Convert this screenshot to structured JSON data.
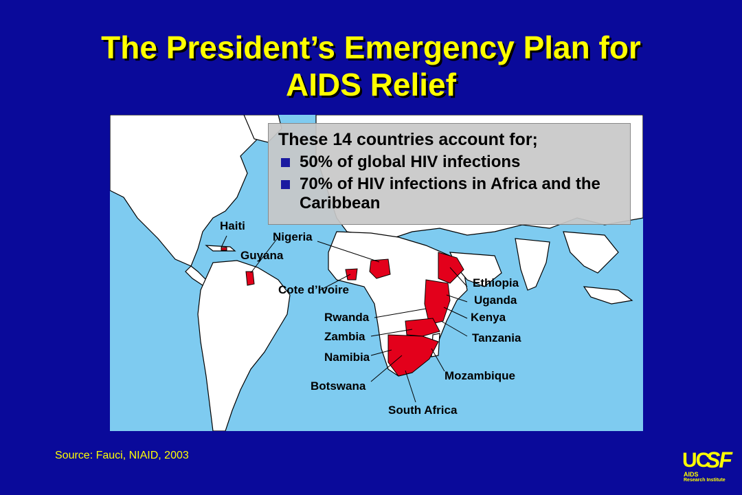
{
  "title": {
    "line1": "The President’s Emergency Plan for",
    "line2": "AIDS Relief"
  },
  "callout": {
    "heading": "These 14 countries account for;",
    "bullets": [
      "50% of global HIV infections",
      "70% of HIV infections in Africa and the Caribbean"
    ],
    "bullet_color": "#1a1aa0"
  },
  "map": {
    "ocean_color": "#7ecbf0",
    "land_color": "#ffffff",
    "highlight_color": "#e3001b",
    "labels": {
      "haiti": "Haiti",
      "nigeria": "Nigeria",
      "guyana": "Guyana",
      "cote_divoire": "Cote d’Ivoire",
      "rwanda": "Rwanda",
      "zambia": "Zambia",
      "namibia": "Namibia",
      "botswana": "Botswana",
      "south_africa": "South Africa",
      "ethiopia": "Ethiopia",
      "uganda": "Uganda",
      "kenya": "Kenya",
      "tanzania": "Tanzania",
      "mozambique": "Mozambique"
    }
  },
  "source": "Source: Fauci, NIAID, 2003",
  "logo": {
    "uc": "UC",
    "sf": "SF",
    "aids": "AIDS",
    "institute": "Research Institute"
  }
}
